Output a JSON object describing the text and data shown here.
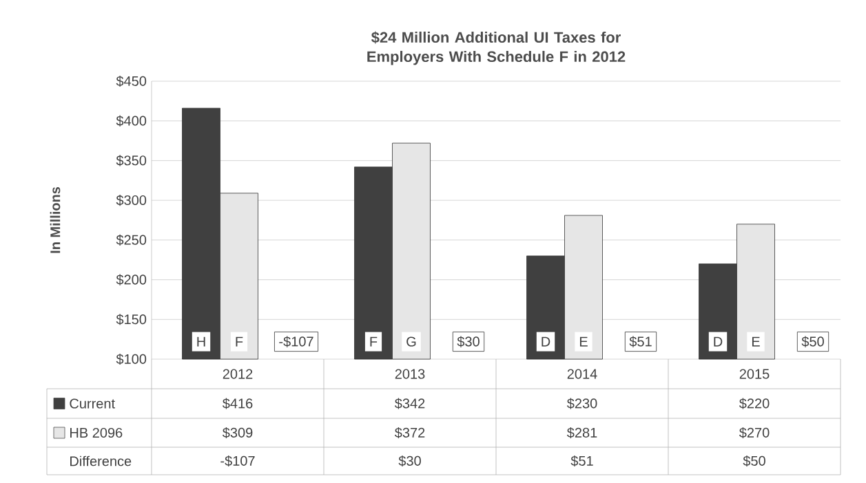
{
  "chart_data": {
    "type": "bar",
    "title": "$24 Million Additional UI Taxes for Employers With Schedule F in 2012",
    "ylabel": "In Millions",
    "categories": [
      "2012",
      "2013",
      "2014",
      "2015"
    ],
    "series": [
      {
        "name": "Current",
        "color": "#404040",
        "values": [
          416,
          342,
          230,
          220
        ],
        "value_labels": [
          "$416",
          "$342",
          "$230",
          "$220"
        ]
      },
      {
        "name": "HB 2096",
        "color": "#e6e6e6",
        "values": [
          309,
          372,
          281,
          270
        ],
        "value_labels": [
          "$309",
          "$372",
          "$281",
          "$270"
        ]
      }
    ],
    "ylim": [
      100,
      450
    ],
    "yticks": [
      {
        "value": 100,
        "label": "$100"
      },
      {
        "value": 150,
        "label": "$150"
      },
      {
        "value": 200,
        "label": "$200"
      },
      {
        "value": 250,
        "label": "$250"
      },
      {
        "value": 300,
        "label": "$300"
      },
      {
        "value": 350,
        "label": "$350"
      },
      {
        "value": 400,
        "label": "$400"
      },
      {
        "value": 450,
        "label": "$450"
      }
    ],
    "grid": "y",
    "legend": "bottom",
    "annotations": [
      "H",
      "F",
      "-$107",
      "F",
      "G",
      "$30",
      "D",
      "E",
      "$51",
      "D",
      "E",
      "$50",
      "Difference",
      "-$107",
      "$30",
      "$51",
      "$50"
    ]
  }
}
